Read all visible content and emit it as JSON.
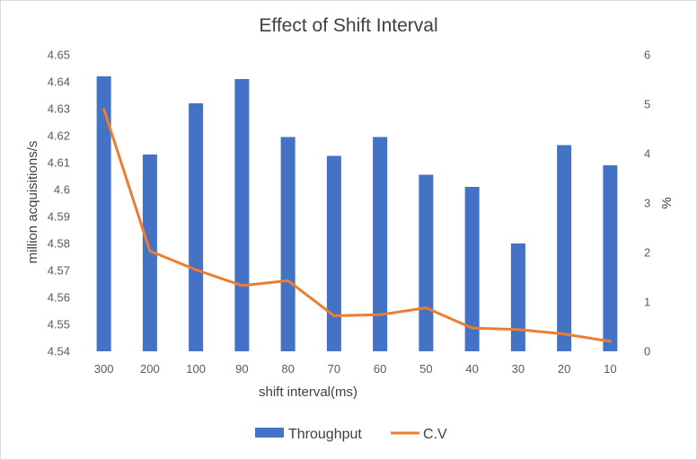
{
  "chart_data": {
    "type": "bar",
    "title": "Effect of Shift Interval",
    "xlabel": "shift interval(ms)",
    "ylabel": "million acquisitions/s",
    "y2label": "%",
    "categories": [
      "300",
      "200",
      "100",
      "90",
      "80",
      "70",
      "60",
      "50",
      "40",
      "30",
      "20",
      "10"
    ],
    "ylim": [
      4.54,
      4.65
    ],
    "y_ticks": [
      "4.54",
      "4.55",
      "4.56",
      "4.57",
      "4.58",
      "4.59",
      "4.6",
      "4.61",
      "4.62",
      "4.63",
      "4.64",
      "4.65"
    ],
    "y2lim": [
      0,
      6
    ],
    "y2_ticks": [
      "0",
      "1",
      "2",
      "3",
      "4",
      "5",
      "6"
    ],
    "grid": false,
    "legend_position": "bottom",
    "series": [
      {
        "name": "Throughput",
        "kind": "bar",
        "axis": "left",
        "color": "#4472C4",
        "values": [
          4.642,
          4.613,
          4.632,
          4.641,
          4.6195,
          4.6125,
          4.6195,
          4.6055,
          4.601,
          4.58,
          4.6165,
          4.609
        ]
      },
      {
        "name": "C.V",
        "kind": "line",
        "axis": "right",
        "color": "#ED7D31",
        "values": [
          4.9,
          2.03,
          1.65,
          1.33,
          1.43,
          0.72,
          0.74,
          0.88,
          0.47,
          0.44,
          0.35,
          0.2
        ]
      }
    ]
  }
}
